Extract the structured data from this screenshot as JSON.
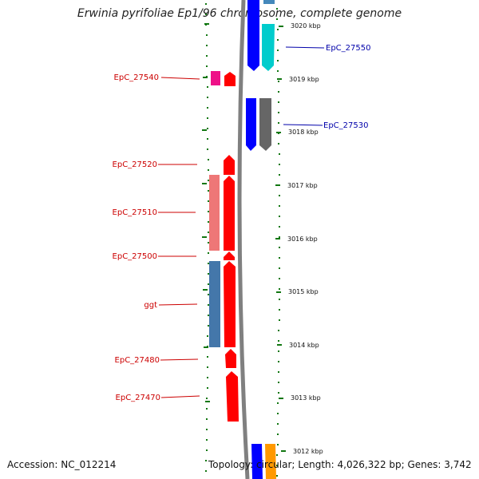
{
  "title": "Erwinia pyrifoliae Ep1/96 chromosome, complete genome",
  "footer": {
    "accession": "Accession: NC_012214",
    "topology": "Topology: circular; Length: 4,026,322 bp; Genes: 3,742"
  },
  "colors": {
    "left_label": "#cc0000",
    "right_label": "#0000aa",
    "tick": "#117711",
    "backbone": "#808080"
  },
  "scale_labels": [
    {
      "text": "3020 kbp",
      "kbp": 3020
    },
    {
      "text": "3019 kbp",
      "kbp": 3019
    },
    {
      "text": "3018 kbp",
      "kbp": 3018
    },
    {
      "text": "3017 kbp",
      "kbp": 3017
    },
    {
      "text": "3016 kbp",
      "kbp": 3016
    },
    {
      "text": "3015 kbp",
      "kbp": 3015
    },
    {
      "text": "3014 kbp",
      "kbp": 3014
    },
    {
      "text": "3013 kbp",
      "kbp": 3013
    },
    {
      "text": "3012 kbp",
      "kbp": 3012
    }
  ],
  "gene_labels_left": [
    {
      "text": "EpC_27540",
      "color": "#cc0000"
    },
    {
      "text": "EpC_27520",
      "color": "#cc0000"
    },
    {
      "text": "EpC_27510",
      "color": "#cc0000"
    },
    {
      "text": "EpC_27500",
      "color": "#cc0000"
    },
    {
      "text": "ggt",
      "color": "#cc0000"
    },
    {
      "text": "EpC_27480",
      "color": "#cc0000"
    },
    {
      "text": "EpC_27470",
      "color": "#cc0000"
    }
  ],
  "gene_labels_right": [
    {
      "text": "EpC_27550",
      "color": "#0000aa"
    },
    {
      "text": "EpC_27530",
      "color": "#0000aa"
    }
  ]
}
